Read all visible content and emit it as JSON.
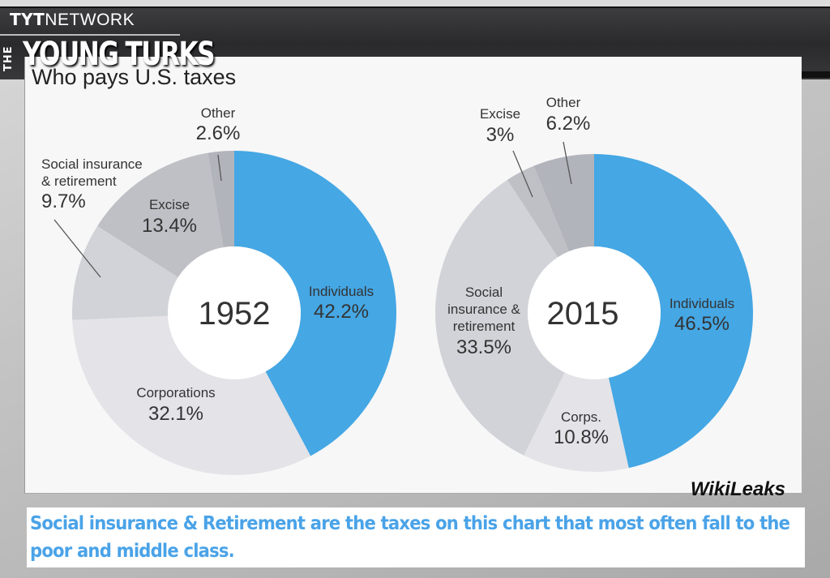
{
  "header": {
    "network_bold": "TYT",
    "network_rest": "NETWORK",
    "show_prefix": "THE",
    "show_name": "YOUNG TURKS"
  },
  "panel": {
    "title": "Who pays U.S. taxes",
    "watermark": "WikiLeaks"
  },
  "caption": {
    "text": "Social insurance & Retirement are the taxes on this chart that most often fall to the poor and middle class."
  },
  "colors": {
    "individuals": "#45a7e4",
    "corporations": "#e3e3e8",
    "social_insurance": "#d2d3d8",
    "excise": "#bfc0c6",
    "other": "#b2b4bb",
    "caption_text": "#4aa3e8"
  },
  "chart_data": [
    {
      "type": "pie",
      "title": "1952",
      "categories": [
        "Individuals",
        "Corporations",
        "Social insurance & retirement",
        "Excise",
        "Other"
      ],
      "values": [
        42.2,
        32.1,
        9.7,
        13.4,
        2.6
      ],
      "labels": [
        "42.2%",
        "32.1%",
        "9.7%",
        "13.4%",
        "2.6%"
      ],
      "donut": true
    },
    {
      "type": "pie",
      "title": "2015",
      "categories": [
        "Individuals",
        "Corps.",
        "Social insurance & retirement",
        "Excise",
        "Other"
      ],
      "values": [
        46.5,
        10.8,
        33.5,
        3,
        6.2
      ],
      "labels": [
        "46.5%",
        "10.8%",
        "33.5%",
        "3%",
        "6.2%"
      ],
      "donut": true
    }
  ],
  "donut1952": {
    "year": "1952",
    "individuals_name": "Individuals",
    "individuals_pct": "42.2%",
    "corporations_name": "Corporations",
    "corporations_pct": "32.1%",
    "social_name_1": "Social insurance",
    "social_name_2": "& retirement",
    "social_pct": "9.7%",
    "excise_name": "Excise",
    "excise_pct": "13.4%",
    "other_name": "Other",
    "other_pct": "2.6%"
  },
  "donut2015": {
    "year": "2015",
    "individuals_name": "Individuals",
    "individuals_pct": "46.5%",
    "corporations_name": "Corps.",
    "corporations_pct": "10.8%",
    "social_name_1": "Social",
    "social_name_2": "insurance &",
    "social_name_3": "retirement",
    "social_pct": "33.5%",
    "excise_name": "Excise",
    "excise_pct": "3%",
    "other_name": "Other",
    "other_pct": "6.2%"
  }
}
